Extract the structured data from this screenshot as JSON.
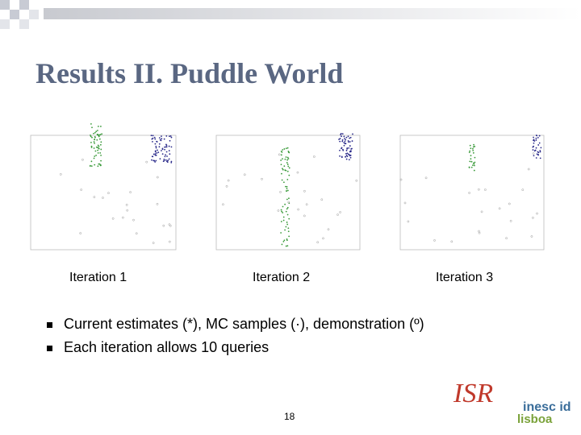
{
  "slide": {
    "title": "Results II. Puddle World",
    "figures": [
      {
        "caption": "Iteration 1"
      },
      {
        "caption": "Iteration 2"
      },
      {
        "caption": "Iteration 3"
      }
    ],
    "bullets": [
      "Current estimates (*), MC samples (·), demonstration (º)",
      "Each iteration allows 10 queries"
    ],
    "page_number": "18",
    "logos": [
      "ISR",
      "inesc id",
      "lisboa"
    ]
  }
}
